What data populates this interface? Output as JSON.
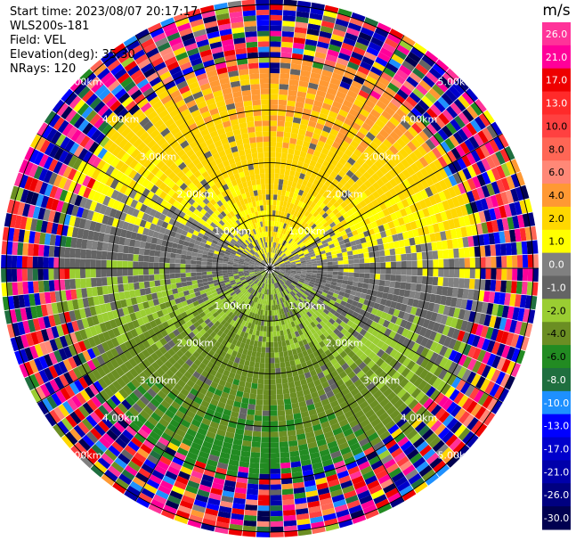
{
  "header": {
    "start_time": "Start time: 2023/08/07 20:17:17",
    "site": "WLS200s-181",
    "field": "Field: VEL",
    "elevation": "Elevation(deg): 35.30",
    "nrays": "NRays: 120"
  },
  "chart_data": {
    "type": "heatmap",
    "projection": "polar-ppi",
    "field": "VEL",
    "unit": "m/s",
    "n_rays": 120,
    "elevation_deg": 35.3,
    "range_rings_km": [
      1.0,
      2.0,
      3.0,
      4.0,
      5.0
    ],
    "ring_labels": [
      "1.00km",
      "2.00km",
      "3.00km",
      "4.00km",
      "5.00km"
    ],
    "max_range_km": 5.1,
    "gate_spacing_km": 0.05,
    "colorbar": {
      "unit": "m/s",
      "ticks": [
        "26.0",
        "21.0",
        "17.0",
        "13.0",
        "10.0",
        "8.0",
        "6.0",
        "4.0",
        "2.0",
        "1.0",
        "0.0",
        "-1.0",
        "-2.0",
        "-4.0",
        "-6.0",
        "-8.0",
        "-10.0",
        "-13.0",
        "-17.0",
        "-21.0",
        "-26.0",
        "-30.0"
      ],
      "bins": [
        {
          "min": 26,
          "max": 30,
          "color": "#ff3399"
        },
        {
          "min": 21,
          "max": 26,
          "color": "#ff0099"
        },
        {
          "min": 17,
          "max": 21,
          "color": "#ee0000"
        },
        {
          "min": 13,
          "max": 17,
          "color": "#ff2a2a"
        },
        {
          "min": 10,
          "max": 13,
          "color": "#ff4040"
        },
        {
          "min": 8,
          "max": 10,
          "color": "#ff6655"
        },
        {
          "min": 6,
          "max": 8,
          "color": "#ff8877"
        },
        {
          "min": 4,
          "max": 6,
          "color": "#ff9933"
        },
        {
          "min": 2,
          "max": 4,
          "color": "#ffd700"
        },
        {
          "min": 1,
          "max": 2,
          "color": "#ffff00"
        },
        {
          "min": 0,
          "max": 1,
          "color": "#808080"
        },
        {
          "min": -1,
          "max": 0,
          "color": "#646464"
        },
        {
          "min": -2,
          "max": -1,
          "color": "#9acd32"
        },
        {
          "min": -4,
          "max": -2,
          "color": "#6b8e23"
        },
        {
          "min": -6,
          "max": -4,
          "color": "#228b22"
        },
        {
          "min": -8,
          "max": -6,
          "color": "#1f6f3f"
        },
        {
          "min": -10,
          "max": -8,
          "color": "#1e90ff"
        },
        {
          "min": -13,
          "max": -10,
          "color": "#0000ff"
        },
        {
          "min": -17,
          "max": -13,
          "color": "#0000cc"
        },
        {
          "min": -21,
          "max": -17,
          "color": "#0000aa"
        },
        {
          "min": -26,
          "max": -21,
          "color": "#000080"
        },
        {
          "min": -30,
          "max": -26,
          "color": "#000050"
        }
      ]
    },
    "pattern": {
      "inner_positive_bearing_deg": 10,
      "inner_negative_bearing_deg": 190,
      "noise_start_km": 3.6,
      "full_noise_km": 4.2
    },
    "grid": true
  }
}
